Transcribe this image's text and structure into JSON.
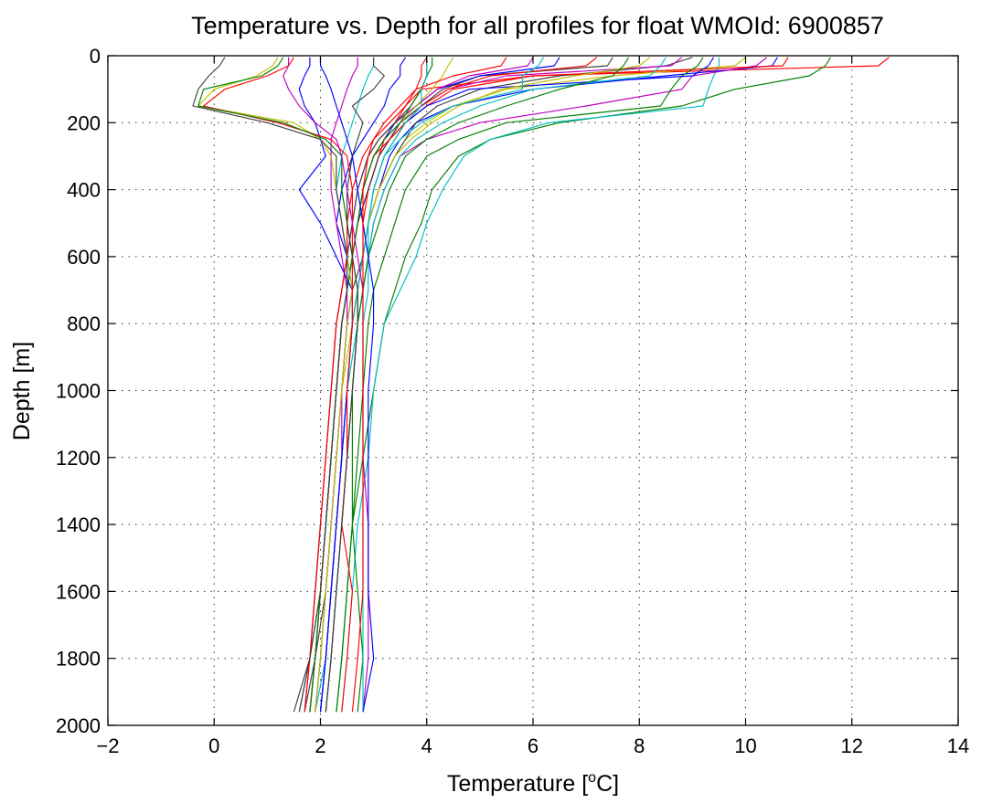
{
  "chart_data": {
    "type": "line",
    "title": "Temperature vs. Depth for all profiles for float WMOId: 6900857",
    "xlabel_main": "Temperature [",
    "xlabel_sup": "o",
    "xlabel_tail": "C]",
    "ylabel": "Depth [m]",
    "xlim": [
      -2,
      14
    ],
    "ylim": [
      0,
      2000
    ],
    "y_reversed": true,
    "grid": true,
    "xticks": [
      -2,
      0,
      2,
      4,
      6,
      8,
      10,
      12,
      14
    ],
    "yticks": [
      0,
      200,
      400,
      600,
      800,
      1000,
      1200,
      1400,
      1600,
      1800,
      2000
    ],
    "xtick_labels": [
      "−2",
      "0",
      "2",
      "4",
      "6",
      "8",
      "10",
      "12",
      "14"
    ],
    "ytick_labels": [
      "0",
      "200",
      "400",
      "600",
      "800",
      "1000",
      "1200",
      "1400",
      "1600",
      "1800",
      "2000"
    ],
    "depth_levels": [
      5,
      30,
      60,
      100,
      150,
      200,
      250,
      300,
      400,
      500,
      600,
      700,
      800,
      1000,
      1200,
      1400,
      1600,
      1800,
      1960
    ],
    "colors": [
      "#0000ff",
      "#007f00",
      "#ff0000",
      "#00bfbf",
      "#bf00bf",
      "#bfbf00",
      "#404040"
    ],
    "series": [
      {
        "color": "#ff0000",
        "temperature": [
          12.7,
          12.5,
          6.0,
          3.9,
          3.6,
          3.4,
          3.2,
          3.1,
          2.9,
          2.8,
          2.8,
          2.7,
          2.6,
          2.5,
          2.4,
          2.3,
          2.2,
          2.1,
          2.0
        ]
      },
      {
        "color": "#007f00",
        "temperature": [
          11.6,
          11.5,
          11.2,
          9.8,
          8.8,
          6.5,
          5.2,
          4.6,
          4.1,
          3.9,
          3.6,
          3.4,
          3.2,
          3.0,
          2.8,
          2.6,
          2.5,
          2.4,
          2.3
        ]
      },
      {
        "color": "#00bfbf",
        "temperature": [
          9.5,
          9.5,
          9.4,
          9.3,
          9.2,
          6.3,
          5.2,
          4.7,
          4.3,
          4.0,
          3.8,
          3.5,
          3.2,
          3.0,
          2.9,
          2.7,
          2.6,
          2.5,
          2.4
        ]
      },
      {
        "color": "#0000ff",
        "temperature": [
          10.6,
          10.5,
          8.5,
          6.0,
          4.5,
          3.8,
          3.5,
          3.3,
          3.1,
          2.9,
          2.8,
          2.7,
          2.6,
          2.5,
          2.4,
          2.3,
          2.2,
          2.1,
          2.0
        ]
      },
      {
        "color": "#bf00bf",
        "temperature": [
          10.4,
          10.2,
          9.0,
          8.8,
          7.0,
          5.0,
          4.0,
          3.5,
          3.2,
          3.0,
          2.9,
          2.8,
          2.7,
          2.6,
          2.5,
          2.4,
          2.3,
          2.2,
          2.1
        ]
      },
      {
        "color": "#bfbf00",
        "temperature": [
          10.0,
          9.8,
          7.5,
          5.5,
          4.5,
          4.0,
          3.6,
          3.4,
          3.1,
          2.9,
          2.8,
          2.7,
          2.6,
          2.5,
          2.4,
          2.3,
          2.2,
          2.1,
          2.0
        ]
      },
      {
        "color": "#404040",
        "temperature": [
          9.0,
          8.5,
          6.5,
          5.0,
          4.2,
          3.8,
          3.6,
          3.4,
          3.1,
          2.9,
          2.8,
          2.6,
          2.5,
          2.4,
          2.3,
          2.2,
          2.1,
          1.9,
          1.7
        ]
      },
      {
        "color": "#ff0000",
        "temperature": [
          10.8,
          10.7,
          6.0,
          4.5,
          4.0,
          3.6,
          3.3,
          3.1,
          2.9,
          2.7,
          2.6,
          2.5,
          2.4,
          2.3,
          2.2,
          2.1,
          2.0,
          1.9,
          1.8
        ]
      },
      {
        "color": "#007f00",
        "temperature": [
          9.2,
          9.1,
          8.8,
          8.6,
          8.4,
          5.5,
          4.6,
          4.0,
          3.6,
          3.4,
          3.2,
          3.0,
          2.9,
          2.8,
          2.7,
          2.6,
          2.5,
          2.4,
          2.3
        ]
      },
      {
        "color": "#0000ff",
        "temperature": [
          9.4,
          9.3,
          9.0,
          4.8,
          4.0,
          3.6,
          3.4,
          3.2,
          3.0,
          2.9,
          2.8,
          2.7,
          2.6,
          2.5,
          2.4,
          2.3,
          2.2,
          2.1,
          2.0
        ]
      },
      {
        "color": "#00bfbf",
        "temperature": [
          8.5,
          8.4,
          8.2,
          6.0,
          5.0,
          4.3,
          3.8,
          3.5,
          3.2,
          3.0,
          2.9,
          2.8,
          2.7,
          2.5,
          2.4,
          2.3,
          2.2,
          2.1,
          1.9
        ]
      },
      {
        "color": "#bf00bf",
        "temperature": [
          8.8,
          8.6,
          5.5,
          4.4,
          3.9,
          3.5,
          3.3,
          3.1,
          2.9,
          2.7,
          2.6,
          2.5,
          2.4,
          2.3,
          2.2,
          2.1,
          2.0,
          1.9,
          1.8
        ]
      },
      {
        "color": "#bfbf00",
        "temperature": [
          8.2,
          8.0,
          6.8,
          5.4,
          4.6,
          4.1,
          3.7,
          3.4,
          3.1,
          2.9,
          2.8,
          2.7,
          2.6,
          2.4,
          2.3,
          2.2,
          2.1,
          2.0,
          1.9
        ]
      },
      {
        "color": "#404040",
        "temperature": [
          7.5,
          7.4,
          5.0,
          4.3,
          3.9,
          3.5,
          3.3,
          3.1,
          2.9,
          2.7,
          2.6,
          2.5,
          2.4,
          2.3,
          2.2,
          2.1,
          2.0,
          1.8,
          1.6
        ]
      },
      {
        "color": "#ff0000",
        "temperature": [
          7.2,
          7.0,
          5.2,
          4.4,
          3.9,
          3.6,
          3.3,
          3.0,
          2.8,
          2.7,
          2.6,
          2.5,
          2.4,
          2.3,
          2.2,
          2.1,
          2.0,
          1.9,
          1.8
        ]
      },
      {
        "color": "#007f00",
        "temperature": [
          7.8,
          7.7,
          7.5,
          6.5,
          5.5,
          4.6,
          4.0,
          3.6,
          3.3,
          3.1,
          2.9,
          2.8,
          2.7,
          2.6,
          2.5,
          2.4,
          2.3,
          2.2,
          2.1
        ]
      },
      {
        "color": "#0000ff",
        "temperature": [
          6.5,
          6.4,
          5.0,
          4.2,
          3.8,
          3.4,
          3.2,
          3.0,
          2.8,
          2.7,
          2.6,
          2.5,
          2.4,
          2.3,
          2.2,
          2.1,
          2.0,
          1.9,
          1.8
        ]
      },
      {
        "color": "#00bfbf",
        "temperature": [
          6.2,
          6.1,
          5.8,
          5.8,
          4.5,
          3.9,
          3.5,
          3.2,
          3.0,
          2.9,
          2.8,
          2.7,
          2.6,
          2.5,
          2.4,
          2.3,
          2.2,
          2.1,
          2.0
        ]
      },
      {
        "color": "#bf00bf",
        "temperature": [
          6.0,
          5.9,
          4.8,
          4.2,
          3.8,
          3.4,
          3.1,
          2.9,
          2.7,
          2.6,
          2.5,
          2.4,
          2.3,
          2.2,
          2.1,
          2.0,
          1.9,
          1.8,
          1.7
        ]
      },
      {
        "color": "#bfbf00",
        "temperature": [
          4.5,
          4.4,
          4.3,
          4.1,
          3.8,
          3.5,
          3.2,
          3.0,
          2.8,
          2.7,
          2.6,
          2.5,
          2.4,
          2.3,
          2.2,
          2.1,
          2.0,
          1.9,
          1.8
        ]
      },
      {
        "color": "#404040",
        "temperature": [
          4.0,
          4.0,
          4.0,
          3.9,
          3.7,
          3.4,
          3.1,
          2.9,
          2.7,
          2.6,
          2.5,
          2.4,
          2.3,
          2.2,
          2.1,
          2.0,
          1.9,
          1.8,
          1.6
        ]
      },
      {
        "color": "#ff0000",
        "temperature": [
          4.0,
          3.9,
          3.9,
          3.8,
          3.6,
          3.3,
          3.0,
          2.8,
          2.6,
          2.5,
          2.5,
          2.4,
          2.3,
          2.2,
          2.1,
          2.0,
          1.9,
          1.8,
          1.7
        ]
      },
      {
        "color": "#007f00",
        "temperature": [
          4.1,
          4.1,
          4.0,
          3.9,
          3.7,
          3.5,
          3.2,
          3.0,
          2.8,
          2.7,
          2.6,
          2.5,
          2.4,
          2.3,
          2.2,
          2.1,
          2.0,
          1.9,
          1.8
        ]
      },
      {
        "color": "#0000ff",
        "temperature": [
          3.6,
          3.5,
          3.5,
          3.3,
          3.2,
          3.0,
          2.8,
          2.6,
          2.4,
          2.3,
          2.5,
          2.6,
          2.5,
          2.4,
          2.3,
          2.2,
          2.1,
          2.0,
          1.9
        ]
      },
      {
        "color": "#00bfbf",
        "temperature": [
          3.0,
          3.0,
          2.9,
          2.8,
          2.7,
          2.6,
          2.5,
          2.4,
          2.3,
          2.4,
          2.5,
          2.6,
          2.6,
          2.5,
          2.4,
          2.3,
          2.2,
          2.1,
          2.0
        ]
      },
      {
        "color": "#bf00bf",
        "temperature": [
          2.7,
          2.7,
          2.6,
          2.5,
          2.4,
          2.3,
          2.2,
          2.2,
          2.2,
          2.3,
          2.4,
          2.5,
          2.5,
          2.4,
          2.4,
          2.3,
          2.2,
          2.1,
          2.0
        ]
      },
      {
        "color": "#0000ff",
        "temperature": [
          1.8,
          1.8,
          1.7,
          1.6,
          1.7,
          1.9,
          2.0,
          2.1,
          1.6,
          2.0,
          2.3,
          2.6,
          2.6,
          2.5,
          2.4,
          2.3,
          2.2,
          2.1,
          2.0
        ]
      },
      {
        "color": "#bfbf00",
        "temperature": [
          1.2,
          1.1,
          0.8,
          0.0,
          -0.3,
          1.5,
          2.0,
          2.2,
          2.3,
          2.4,
          2.5,
          2.6,
          2.5,
          2.4,
          2.3,
          2.2,
          2.1,
          2.0,
          1.9
        ]
      },
      {
        "color": "#404040",
        "temperature": [
          0.2,
          0.1,
          -0.1,
          -0.3,
          -0.4,
          1.0,
          2.0,
          2.3,
          2.3,
          2.4,
          2.5,
          2.5,
          2.4,
          2.3,
          2.2,
          2.1,
          2.0,
          1.8,
          1.5
        ]
      },
      {
        "color": "#ff0000",
        "temperature": [
          1.5,
          1.4,
          1.0,
          0.2,
          -0.2,
          1.2,
          2.2,
          2.5,
          2.6,
          2.6,
          2.6,
          2.6,
          2.6,
          2.5,
          2.5,
          2.4,
          2.6,
          2.5,
          2.4
        ]
      },
      {
        "color": "#007f00",
        "temperature": [
          1.3,
          1.2,
          0.9,
          -0.2,
          -0.3,
          1.3,
          2.1,
          2.4,
          2.4,
          2.5,
          2.6,
          2.7,
          2.7,
          2.6,
          2.6,
          2.6,
          2.7,
          2.8,
          2.7
        ]
      },
      {
        "color": "#404040",
        "temperature": [
          3.0,
          3.0,
          3.2,
          3.0,
          2.6,
          2.8,
          2.7,
          2.6,
          2.5,
          2.5,
          2.6,
          2.7,
          2.7,
          2.6,
          2.5,
          2.4,
          2.3,
          2.2,
          2.1
        ]
      },
      {
        "color": "#bf00bf",
        "temperature": [
          1.4,
          1.4,
          1.3,
          1.4,
          1.6,
          1.9,
          2.3,
          2.4,
          2.5,
          2.6,
          2.7,
          2.8,
          2.8,
          2.8,
          2.8,
          2.9,
          2.9,
          2.9,
          2.8
        ]
      },
      {
        "color": "#00bfbf",
        "temperature": [
          4.0,
          4.0,
          4.0,
          3.9,
          3.9,
          3.6,
          3.4,
          3.2,
          3.0,
          2.9,
          2.9,
          2.9,
          2.8,
          2.8,
          2.8,
          2.8,
          2.8,
          2.8,
          2.8
        ]
      },
      {
        "color": "#0000ff",
        "temperature": [
          2.0,
          2.0,
          2.1,
          2.2,
          2.3,
          2.4,
          2.5,
          2.6,
          2.7,
          2.8,
          2.9,
          3.0,
          3.0,
          2.9,
          2.9,
          2.9,
          2.9,
          3.0,
          2.8
        ]
      },
      {
        "color": "#ff0000",
        "temperature": [
          5.5,
          5.4,
          4.5,
          3.8,
          3.5,
          3.2,
          3.0,
          2.9,
          2.8,
          2.8,
          2.8,
          2.8,
          2.8,
          2.8,
          2.8,
          2.8,
          2.8,
          2.7,
          2.6
        ]
      }
    ]
  }
}
